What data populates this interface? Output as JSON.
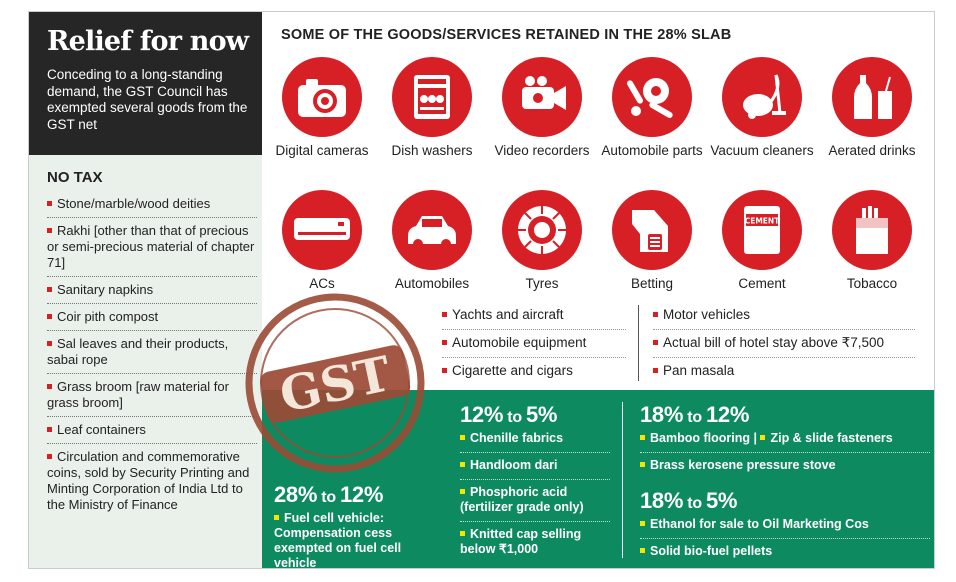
{
  "header": {
    "title": "Relief for now",
    "subtitle": "Conceding to a long-standing demand, the GST Council has exempted several goods from the GST net"
  },
  "no_tax": {
    "heading": "NO TAX",
    "items": [
      "Stone/marble/wood deities",
      "Rakhi [other than that of precious or semi-precious material of chapter 71]",
      "Sanitary napkins",
      "Coir pith compost",
      "Sal leaves and their products, sabai rope",
      "Grass broom [raw material for grass broom]",
      "Leaf containers",
      "Circulation and commemorative coins, sold by Security Printing and Minting Corporation of India Ltd to the Ministry of Finance"
    ]
  },
  "slab": {
    "title": "SOME OF THE GOODS/SERVICES RETAINED IN THE 28% SLAB",
    "icons": [
      {
        "label": "Digital cameras",
        "icon": "camera-icon"
      },
      {
        "label": "Dish washers",
        "icon": "dishwasher-icon"
      },
      {
        "label": "Video recorders",
        "icon": "video-recorder-icon"
      },
      {
        "label": "Automobile parts",
        "icon": "automobile-parts-icon"
      },
      {
        "label": "Vacuum cleaners",
        "icon": "vacuum-cleaner-icon"
      },
      {
        "label": "Aerated drinks",
        "icon": "aerated-drinks-icon"
      },
      {
        "label": "ACs",
        "icon": "ac-icon"
      },
      {
        "label": "Automobiles",
        "icon": "car-icon"
      },
      {
        "label": "Tyres",
        "icon": "tyre-icon"
      },
      {
        "label": "Betting",
        "icon": "betting-icon"
      },
      {
        "label": "Cement",
        "icon": "cement-icon"
      },
      {
        "label": "Tobacco",
        "icon": "tobacco-icon"
      }
    ],
    "cement_text": "CEMENT",
    "list_left": [
      "Yachts and aircraft",
      "Automobile equipment",
      "Cigarette and cigars"
    ],
    "list_right": [
      "Motor vehicles",
      "Actual bill of hotel stay above ₹7,500",
      "Pan masala"
    ]
  },
  "stamp": {
    "text": "GST"
  },
  "changes": {
    "to_word": "to",
    "c1": {
      "from": "28%",
      "to": "12%",
      "items": [
        "Fuel cell vehicle: Compensation cess exempted on fuel cell vehicle"
      ]
    },
    "c2": {
      "from": "12%",
      "to": "5%",
      "items": [
        "Chenille fabrics",
        "Handloom dari",
        "Phosphoric acid (fertilizer grade only)",
        "Knitted cap selling below ₹1,000"
      ]
    },
    "c3": {
      "from": "18%",
      "to": "12%",
      "items_inline": [
        "Bamboo flooring",
        "Zip & slide fasteners"
      ],
      "separator": "|",
      "items": [
        "Brass kerosene pressure stove"
      ]
    },
    "c4": {
      "from": "18%",
      "to": "5%",
      "items": [
        "Ethanol for sale to Oil Marketing Cos",
        "Solid bio-fuel pellets"
      ]
    }
  },
  "colors": {
    "red": "#d71f26",
    "green": "#0d8a60",
    "dark": "#262626",
    "mint": "#e9f1ea",
    "bullet_yellow": "#f5e600",
    "stamp_brown": "#9a4a35"
  }
}
